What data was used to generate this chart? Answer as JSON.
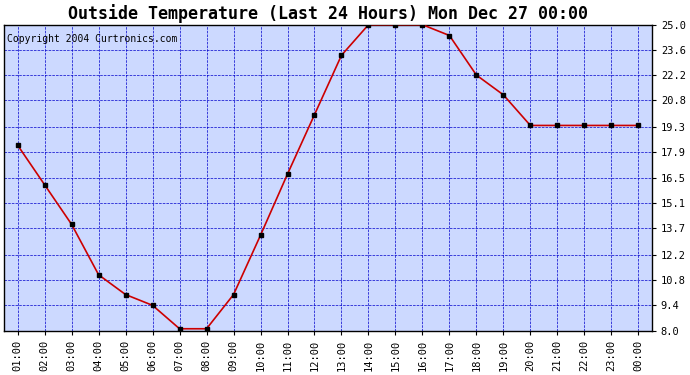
{
  "title": "Outside Temperature (Last 24 Hours) Mon Dec 27 00:00",
  "copyright": "Copyright 2004 Curtronics.com",
  "x_labels": [
    "01:00",
    "02:00",
    "03:00",
    "04:00",
    "05:00",
    "06:00",
    "07:00",
    "08:00",
    "09:00",
    "10:00",
    "11:00",
    "12:00",
    "13:00",
    "14:00",
    "15:00",
    "16:00",
    "17:00",
    "18:00",
    "19:00",
    "20:00",
    "21:00",
    "22:00",
    "23:00",
    "00:00"
  ],
  "y_values": [
    18.3,
    16.1,
    13.9,
    11.1,
    10.0,
    9.4,
    8.1,
    8.1,
    10.0,
    13.3,
    16.7,
    20.0,
    23.3,
    25.0,
    25.0,
    25.0,
    24.4,
    22.2,
    21.1,
    19.4,
    19.4,
    19.4,
    19.4,
    19.4
  ],
  "y_ticks": [
    8.0,
    9.4,
    10.8,
    12.2,
    13.7,
    15.1,
    16.5,
    17.9,
    19.3,
    20.8,
    22.2,
    23.6,
    25.0
  ],
  "ylim": [
    8.0,
    25.0
  ],
  "line_color": "#cc0000",
  "marker_color": "#000000",
  "grid_color": "#0000cc",
  "bg_color": "#ffffff",
  "plot_bg_color": "#ccd9ff",
  "title_fontsize": 12,
  "copyright_fontsize": 7,
  "tick_fontsize": 7.5
}
